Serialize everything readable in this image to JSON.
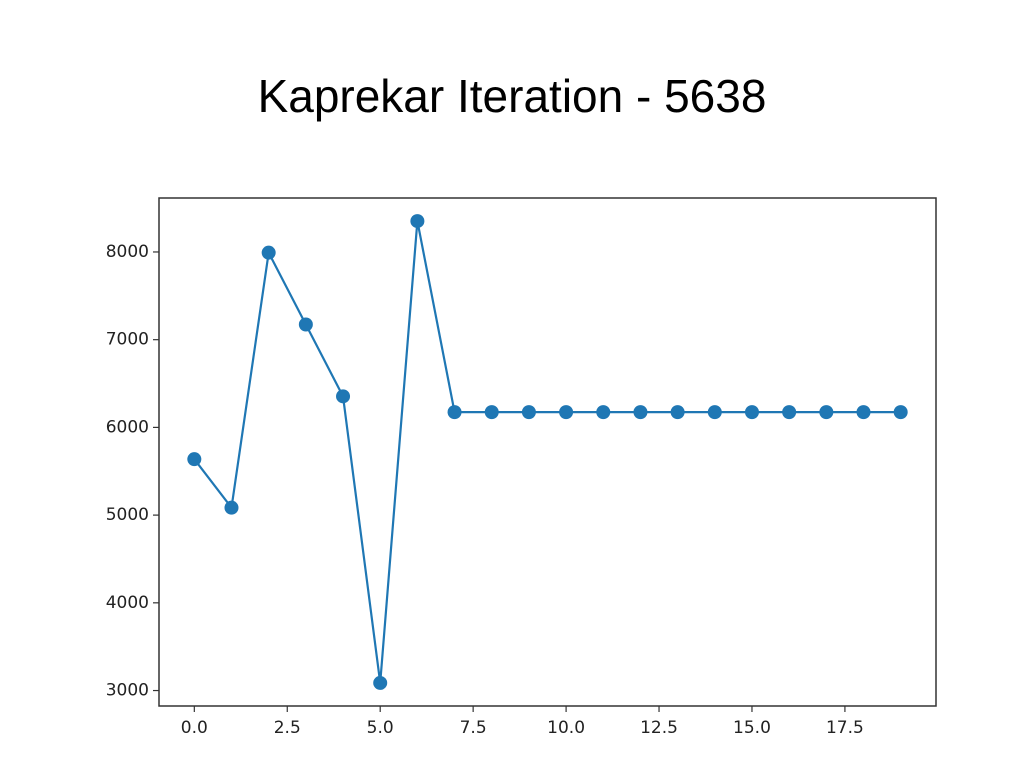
{
  "chart_data": {
    "type": "line",
    "title": "Kaprekar Iteration - 5638",
    "x": [
      0,
      1,
      2,
      3,
      4,
      5,
      6,
      7,
      8,
      9,
      10,
      11,
      12,
      13,
      14,
      15,
      16,
      17,
      18,
      19
    ],
    "series": [
      {
        "color": "#1f77b4",
        "values": [
          5638,
          5085,
          7992,
          7173,
          6354,
          3087,
          8352,
          6174,
          6174,
          6174,
          6174,
          6174,
          6174,
          6174,
          6174,
          6174,
          6174,
          6174,
          6174,
          6174
        ]
      }
    ],
    "xlim": [
      -0.95,
      19.95
    ],
    "xticks": [
      {
        "value": 0,
        "label": "0.0"
      },
      {
        "value": 2.5,
        "label": "2.5"
      },
      {
        "value": 5,
        "label": "5.0"
      },
      {
        "value": 7.5,
        "label": "7.5"
      },
      {
        "value": 10,
        "label": "10.0"
      },
      {
        "value": 12.5,
        "label": "12.5"
      },
      {
        "value": 15,
        "label": "15.0"
      },
      {
        "value": 17.5,
        "label": "17.5"
      }
    ],
    "ylim": [
      2823.75,
      8615.25
    ],
    "yticks": [
      3000,
      4000,
      5000,
      6000,
      7000,
      8000
    ]
  }
}
